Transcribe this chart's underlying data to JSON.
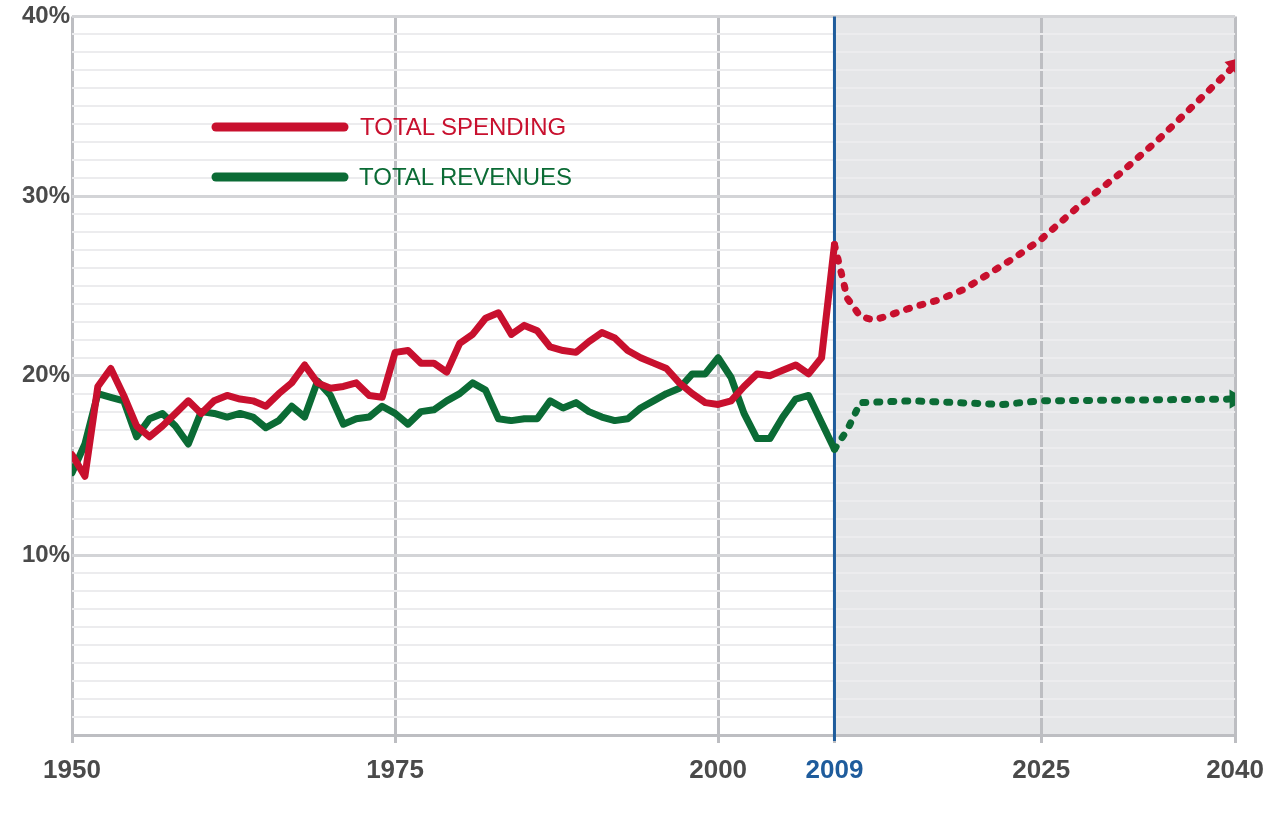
{
  "chart_data": {
    "type": "line",
    "xlim": [
      1950,
      2040
    ],
    "xticks": [
      1950,
      1975,
      2000,
      2009,
      2025,
      2040
    ],
    "ylim": [
      0,
      40
    ],
    "yticks": [
      {
        "value": 0,
        "label": null
      },
      {
        "value": 1,
        "label": null
      },
      {
        "value": 2,
        "label": null
      },
      {
        "value": 3,
        "label": null
      },
      {
        "value": 4,
        "label": null
      },
      {
        "value": 5,
        "label": null
      },
      {
        "value": 6,
        "label": null
      },
      {
        "value": 7,
        "label": null
      },
      {
        "value": 8,
        "label": null
      },
      {
        "value": 9,
        "label": null
      },
      {
        "value": 10,
        "label": "10%"
      },
      {
        "value": 11,
        "label": null
      },
      {
        "value": 12,
        "label": null
      },
      {
        "value": 13,
        "label": null
      },
      {
        "value": 14,
        "label": null
      },
      {
        "value": 15,
        "label": null
      },
      {
        "value": 16,
        "label": null
      },
      {
        "value": 17,
        "label": null
      },
      {
        "value": 18,
        "label": null
      },
      {
        "value": 19,
        "label": null
      },
      {
        "value": 20,
        "label": "20%"
      },
      {
        "value": 21,
        "label": null
      },
      {
        "value": 22,
        "label": null
      },
      {
        "value": 23,
        "label": null
      },
      {
        "value": 24,
        "label": null
      },
      {
        "value": 25,
        "label": null
      },
      {
        "value": 26,
        "label": null
      },
      {
        "value": 27,
        "label": null
      },
      {
        "value": 28,
        "label": null
      },
      {
        "value": 29,
        "label": null
      },
      {
        "value": 30,
        "label": "30%"
      },
      {
        "value": 31,
        "label": null
      },
      {
        "value": 32,
        "label": null
      },
      {
        "value": 33,
        "label": null
      },
      {
        "value": 34,
        "label": null
      },
      {
        "value": 35,
        "label": null
      },
      {
        "value": 36,
        "label": null
      },
      {
        "value": 37,
        "label": null
      },
      {
        "value": 38,
        "label": null
      },
      {
        "value": 39,
        "label": null
      },
      {
        "value": 40,
        "label": "40%"
      }
    ],
    "grid": true,
    "legend": "top left",
    "marker": "none",
    "bands": [
      {
        "axis": "x",
        "from": 2009,
        "to": 2040,
        "color": "#e5e6e8"
      }
    ],
    "ref_lines": [
      {
        "axis": "x",
        "value": 2009,
        "color": "#1f5c9c",
        "line_style": "solid"
      }
    ],
    "series": [
      {
        "name": "TOTAL SPENDING",
        "color": "#c8102e",
        "line_style": "solid",
        "x": [
          1950,
          1951,
          1952,
          1953,
          1954,
          1955,
          1956,
          1957,
          1958,
          1959,
          1960,
          1961,
          1962,
          1963,
          1964,
          1965,
          1966,
          1967,
          1968,
          1969,
          1970,
          1971,
          1972,
          1973,
          1974,
          1975,
          1976,
          1977,
          1978,
          1979,
          1980,
          1981,
          1982,
          1983,
          1984,
          1985,
          1986,
          1987,
          1988,
          1989,
          1990,
          1991,
          1992,
          1993,
          1994,
          1995,
          1996,
          1997,
          1998,
          1999,
          2000,
          2001,
          2002,
          2003,
          2004,
          2005,
          2006,
          2007,
          2008,
          2009
        ],
        "values": [
          15.6,
          14.4,
          19.4,
          20.4,
          18.9,
          17.2,
          16.6,
          17.2,
          17.9,
          18.6,
          17.9,
          18.6,
          18.9,
          18.7,
          18.6,
          18.3,
          19.0,
          19.6,
          20.6,
          19.6,
          19.3,
          19.4,
          19.6,
          18.9,
          18.8,
          21.3,
          21.4,
          20.7,
          20.7,
          20.2,
          21.8,
          22.3,
          23.2,
          23.5,
          22.3,
          22.8,
          22.5,
          21.6,
          21.4,
          21.3,
          21.9,
          22.4,
          22.1,
          21.4,
          21.0,
          20.7,
          20.4,
          19.6,
          19.0,
          18.5,
          18.4,
          18.6,
          19.4,
          20.1,
          20.0,
          20.3,
          20.6,
          20.1,
          21.0,
          27.3
        ]
      },
      {
        "color": "#c8102e",
        "line_style": "dotted",
        "x": [
          2009,
          2010,
          2011,
          2012,
          2013,
          2015,
          2017,
          2019,
          2021,
          2023,
          2025,
          2028,
          2031,
          2034,
          2037,
          2040
        ],
        "values": [
          27.3,
          24.3,
          23.3,
          23.1,
          23.3,
          23.8,
          24.2,
          24.8,
          25.7,
          26.6,
          27.6,
          29.5,
          31.2,
          33.1,
          35.2,
          37.3
        ]
      },
      {
        "name": "TOTAL REVENUES",
        "color": "#0b6b35",
        "line_style": "solid",
        "x": [
          1950,
          1951,
          1952,
          1953,
          1954,
          1955,
          1956,
          1957,
          1958,
          1959,
          1960,
          1961,
          1962,
          1963,
          1964,
          1965,
          1966,
          1967,
          1968,
          1969,
          1970,
          1971,
          1972,
          1973,
          1974,
          1975,
          1976,
          1977,
          1978,
          1979,
          1980,
          1981,
          1982,
          1983,
          1984,
          1985,
          1986,
          1987,
          1988,
          1989,
          1990,
          1991,
          1992,
          1993,
          1994,
          1995,
          1996,
          1997,
          1998,
          1999,
          2000,
          2001,
          2002,
          2003,
          2004,
          2005,
          2006,
          2007,
          2008,
          2009
        ],
        "values": [
          14.6,
          16.2,
          19.0,
          18.8,
          18.6,
          16.6,
          17.6,
          17.9,
          17.2,
          16.2,
          18.0,
          17.9,
          17.7,
          17.9,
          17.7,
          17.1,
          17.5,
          18.3,
          17.7,
          19.7,
          18.9,
          17.3,
          17.6,
          17.7,
          18.3,
          17.9,
          17.3,
          18.0,
          18.1,
          18.6,
          19.0,
          19.6,
          19.2,
          17.6,
          17.5,
          17.6,
          17.6,
          18.6,
          18.2,
          18.5,
          18.0,
          17.7,
          17.5,
          17.6,
          18.2,
          18.6,
          19.0,
          19.3,
          20.1,
          20.1,
          21.0,
          19.9,
          17.9,
          16.5,
          16.5,
          17.7,
          18.7,
          18.9,
          17.4,
          15.9
        ]
      },
      {
        "color": "#0b6b35",
        "line_style": "dotted",
        "x": [
          2009,
          2010,
          2011,
          2015,
          2022,
          2025,
          2040
        ],
        "values": [
          15.9,
          17.0,
          18.5,
          18.6,
          18.4,
          18.6,
          18.7
        ]
      }
    ]
  }
}
